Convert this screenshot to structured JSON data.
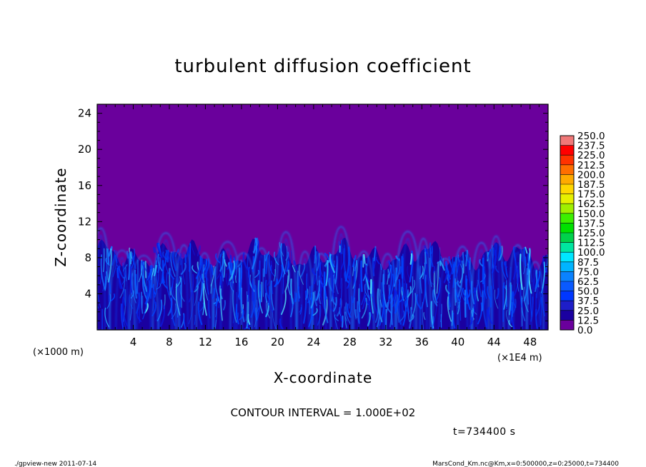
{
  "chart_data": {
    "type": "heatmap",
    "title": "turbulent diffusion coefficient",
    "xlabel": "X-coordinate",
    "ylabel": "Z-coordinate",
    "xlim": [
      0,
      50
    ],
    "ylim": [
      0,
      25
    ],
    "x_ticks": [
      "4",
      "8",
      "12",
      "16",
      "20",
      "24",
      "28",
      "32",
      "36",
      "40",
      "44",
      "48"
    ],
    "y_ticks": [
      "4",
      "8",
      "12",
      "16",
      "20",
      "24"
    ],
    "x_unit_left": "(×1000 m)",
    "x_unit_right": "(×1E4 m)",
    "contour_interval": "CONTOUR INTERVAL = 1.000E+02",
    "time_label": "t=734400 s",
    "colorbar_levels": [
      "0.0",
      "12.5",
      "25.0",
      "37.5",
      "50.0",
      "62.5",
      "75.0",
      "87.5",
      "100.0",
      "112.5",
      "125.0",
      "137.5",
      "150.0",
      "162.5",
      "175.0",
      "187.5",
      "200.0",
      "212.5",
      "225.0",
      "237.5",
      "250.0"
    ],
    "colorbar_colors": [
      "#6a009c",
      "#1a00a0",
      "#1e1ec8",
      "#0037ff",
      "#0a5aff",
      "#0a82ff",
      "#00b4ff",
      "#00e6ff",
      "#00e6a0",
      "#00d24b",
      "#00e100",
      "#3cf000",
      "#a0f000",
      "#e6f000",
      "#ffd700",
      "#ffaa00",
      "#ff6e00",
      "#ff3200",
      "#ff0000",
      "#f07878"
    ],
    "background_color": "#6a009c",
    "turbulent_layer_colors": [
      "#1a00a0",
      "#0a1ee6",
      "#0046ff",
      "#1478ff",
      "#28b4ff",
      "#50e6ff"
    ]
  },
  "footer": {
    "left": "./gpview-new 2011-07-14",
    "right": "MarsCond_Km.nc@Km,x=0:500000,z=0:25000,t=734400"
  }
}
